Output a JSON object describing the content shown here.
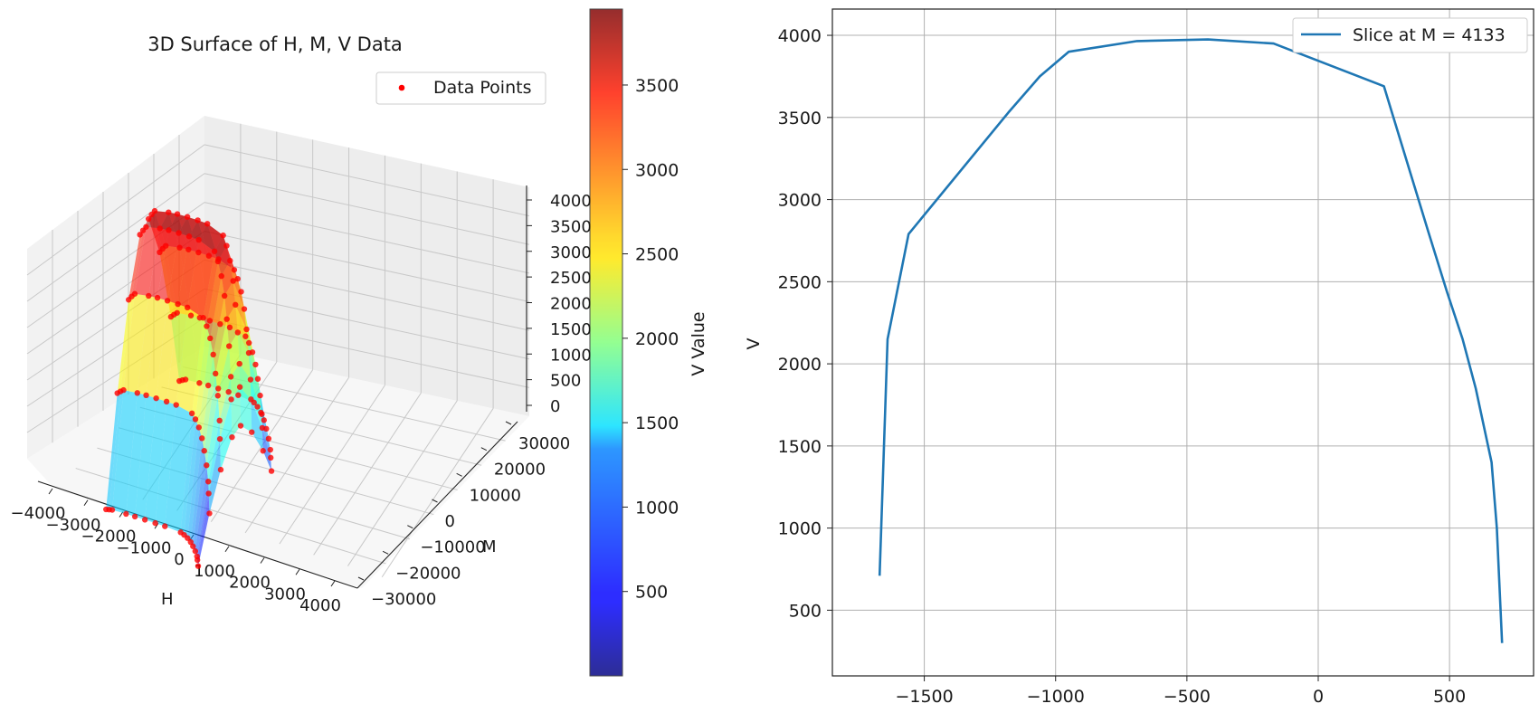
{
  "chart_data": [
    {
      "type": "surface3d",
      "title": "3D Surface of H, M, V Data",
      "legend": {
        "entries": [
          {
            "label": "Data Points",
            "marker": "dot",
            "color": "#ff0000"
          }
        ],
        "placement": "top-right"
      },
      "axes": {
        "x": {
          "label": "H",
          "ticks": [
            "−4000",
            "−3000",
            "−2000",
            "−1000",
            "0",
            "1000",
            "2000",
            "3000",
            "4000"
          ]
        },
        "y": {
          "label": "M",
          "ticks": [
            "−30000",
            "−20000",
            "−10000",
            "0",
            "10000",
            "20000",
            "30000"
          ]
        },
        "z": {
          "label": "",
          "ticks": [
            "0",
            "500",
            "1000",
            "1500",
            "2000",
            "2500",
            "3000",
            "3500",
            "4000"
          ]
        }
      },
      "colorbar": {
        "label": "V Value",
        "colormap": "jet",
        "range": [
          0,
          3950
        ],
        "ticks": [
          {
            "value": 500,
            "label": "500"
          },
          {
            "value": 1000,
            "label": "1000"
          },
          {
            "value": 1500,
            "label": "1500"
          },
          {
            "value": 2000,
            "label": "2000"
          },
          {
            "value": 2500,
            "label": "2500"
          },
          {
            "value": 3000,
            "label": "3000"
          },
          {
            "value": 3500,
            "label": "3500"
          }
        ]
      },
      "ridge": {
        "H": [
          -1700,
          -1620,
          -1540,
          -1180,
          -950,
          -690,
          -420,
          -170,
          240,
          330,
          420,
          500,
          560,
          620,
          665,
          675,
          695
        ],
        "V": [
          3800,
          3870,
          3930,
          3970,
          3985,
          3990,
          3990,
          3985,
          3900,
          3780,
          3600,
          3350,
          3050,
          2700,
          2300,
          2000,
          1500
        ]
      },
      "surface_color": "jet colormap by V",
      "grid": true
    },
    {
      "type": "line",
      "title": "",
      "xlabel": "",
      "ylabel": "V",
      "xlim": [
        -1850,
        820
      ],
      "ylim": [
        100,
        4160
      ],
      "xticks": [
        {
          "value": -1500,
          "label": "−1500"
        },
        {
          "value": -1000,
          "label": "−1000"
        },
        {
          "value": -500,
          "label": "−500"
        },
        {
          "value": 0,
          "label": "0"
        },
        {
          "value": 500,
          "label": "500"
        }
      ],
      "yticks": [
        {
          "value": 500,
          "label": "500"
        },
        {
          "value": 1000,
          "label": "1000"
        },
        {
          "value": 1500,
          "label": "1500"
        },
        {
          "value": 2000,
          "label": "2000"
        },
        {
          "value": 2500,
          "label": "2500"
        },
        {
          "value": 3000,
          "label": "3000"
        },
        {
          "value": 3500,
          "label": "3500"
        },
        {
          "value": 4000,
          "label": "4000"
        }
      ],
      "grid": true,
      "legend_placement": "top-right",
      "series": [
        {
          "name": "Slice at M = 4133",
          "color": "#1f77b4",
          "x": [
            -1670,
            -1640,
            -1560,
            -1180,
            -1060,
            -950,
            -690,
            -420,
            -170,
            250,
            420,
            490,
            550,
            600,
            660,
            680,
            700
          ],
          "y": [
            710,
            2150,
            2790,
            3530,
            3750,
            3900,
            3965,
            3975,
            3950,
            3690,
            2800,
            2440,
            2150,
            1850,
            1400,
            1000,
            300
          ]
        }
      ]
    }
  ]
}
